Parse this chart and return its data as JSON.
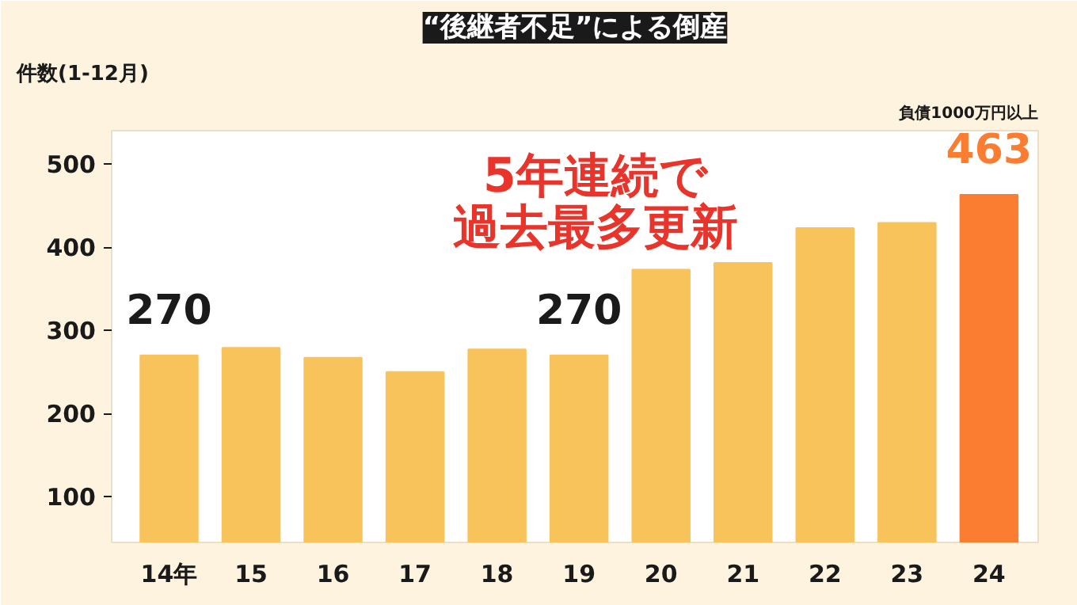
{
  "chart_data": {
    "type": "bar",
    "title": "“後継者不足”による倒産",
    "ylabel": "件数(1-12月)",
    "categories": [
      "14年",
      "15",
      "16",
      "17",
      "18",
      "19",
      "20",
      "21",
      "22",
      "23",
      "24"
    ],
    "values": [
      270,
      279,
      267,
      250,
      277,
      270,
      373,
      381,
      423,
      429,
      463
    ],
    "colors": [
      "#f9c35c",
      "#f9c35c",
      "#f9c35c",
      "#f9c35c",
      "#f9c35c",
      "#f9c35c",
      "#f9c35c",
      "#f9c35c",
      "#f9c35c",
      "#f9c35c",
      "#fa7d32"
    ],
    "value_labels": [
      "270",
      null,
      null,
      null,
      null,
      "270",
      null,
      null,
      null,
      null,
      "463"
    ],
    "ylim": [
      45,
      540
    ],
    "yticks": [
      100,
      200,
      300,
      400,
      500
    ],
    "grid": false,
    "annotations": [
      "5年連続で",
      "過去最多更新",
      "負債1000万円以上"
    ]
  }
}
